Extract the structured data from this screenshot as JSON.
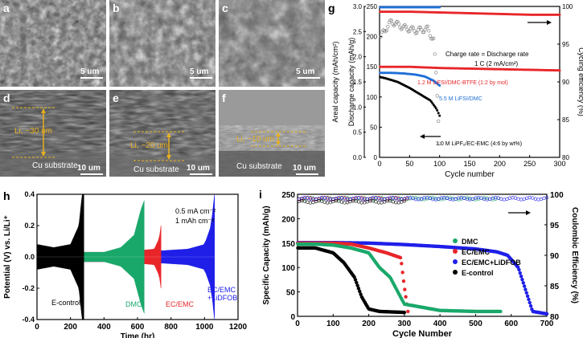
{
  "panels": {
    "a": {
      "label": "a",
      "scale": "5 um"
    },
    "b": {
      "label": "b",
      "scale": "5 um"
    },
    "c": {
      "label": "c",
      "scale": "5 um"
    },
    "d": {
      "label": "d",
      "scale": "10 um",
      "thickness": "Li, ~30 um",
      "substrate": "Cu substrate"
    },
    "e": {
      "label": "e",
      "scale": "10 um",
      "thickness": "Li, ~20 um",
      "substrate": "Cu substrate"
    },
    "f": {
      "label": "f",
      "scale": "10 um",
      "thickness": "Li, ~10 um",
      "substrate": "Cu substrate"
    }
  },
  "chart_data": [
    {
      "id": "g",
      "label": "g",
      "type": "scatter",
      "xlabel": "Cycle number",
      "ylabel_left_outer": "Areal capacity (mAh/cm²)",
      "ylabel_left_inner": "Discharge capacity (mAh/g)",
      "ylabel_right": "Cycling efficiency (%)",
      "xlim": [
        0,
        300
      ],
      "x_ticks": [
        "0",
        "50",
        "100",
        "150",
        "200",
        "250",
        "300"
      ],
      "ylim_areal": [
        0,
        3.0
      ],
      "areal_ticks": [
        "0.0",
        "0.5",
        "1.0",
        "1.5",
        "2.0",
        "2.5",
        "3.0"
      ],
      "ylim_discharge": [
        0,
        250
      ],
      "discharge_ticks": [
        "0",
        "50",
        "100",
        "150",
        "200",
        "250"
      ],
      "ylim_efficiency": [
        80,
        100
      ],
      "efficiency_ticks": [
        "80",
        "85",
        "90",
        "95",
        "100"
      ],
      "annotations": [
        "Charge rate = Discharge rate",
        "1 C (2 mA/cm²)"
      ],
      "series": [
        {
          "name": "1.2 M LiFSI/DMC-BTFE (1:2 by mol)",
          "color": "#e8262a",
          "x": [
            1,
            50,
            100,
            150,
            200,
            250,
            300
          ],
          "y": [
            150,
            150,
            148,
            147,
            146,
            145,
            144
          ]
        },
        {
          "name": "5.5 M LiFSI/DMC",
          "color": "#1f6fd6",
          "x": [
            1,
            20,
            40,
            60,
            75,
            90,
            100
          ],
          "y": [
            140,
            140,
            139,
            137,
            134,
            127,
            119
          ]
        },
        {
          "name": "1.0 M LiPF₆/EC-EMC (4:6 by wt%)",
          "color": "#000000",
          "x": [
            1,
            10,
            30,
            50,
            70,
            85,
            95,
            100
          ],
          "y": [
            133,
            131,
            125,
            115,
            103,
            94,
            80,
            69
          ]
        },
        {
          "name": "",
          "color": "#e8262a",
          "axis": "efficiency",
          "x": [
            1,
            50,
            100,
            150,
            200,
            250,
            300
          ],
          "y": [
            99.3,
            99.3,
            99.2,
            99.1,
            99.0,
            98.9,
            98.9
          ]
        },
        {
          "name": "",
          "color": "#1f6fd6",
          "axis": "efficiency",
          "x": [
            1,
            20,
            40,
            60,
            80,
            100
          ],
          "y": [
            99.9,
            99.9,
            99.9,
            99.9,
            99.9,
            99.9
          ]
        },
        {
          "name": "",
          "color": "#777777",
          "axis": "efficiency",
          "x": [
            2,
            10,
            20,
            40,
            60,
            80,
            90,
            95,
            100
          ],
          "y": [
            96.0,
            97.0,
            98.0,
            97.2,
            96.8,
            97.0,
            95.5,
            90.0,
            82.0
          ]
        }
      ]
    },
    {
      "id": "h",
      "label": "h",
      "type": "area",
      "xlabel": "Time (hr)",
      "ylabel": "Potential (V) vs. Li/Li⁺",
      "xlim": [
        0,
        1200
      ],
      "x_ticks": [
        "0",
        "200",
        "400",
        "600",
        "800",
        "1000",
        "1200"
      ],
      "ylim": [
        -0.4,
        0.4
      ],
      "y_ticks": [
        "-0.4",
        "-0.2",
        "0.0",
        "0.2",
        "0.4"
      ],
      "annotations": [
        "0.5 mA cm⁻²",
        "1 mAh cm⁻²"
      ],
      "series": [
        {
          "name": "E-control",
          "color": "#000000",
          "x": [
            0,
            100,
            200,
            250,
            270,
            280
          ],
          "y": [
            0.08,
            0.06,
            0.08,
            0.2,
            0.4,
            0.4
          ]
        },
        {
          "name": "DMC",
          "color": "#1aa86a",
          "x": [
            280,
            400,
            500,
            580,
            620,
            640
          ],
          "y": [
            0.03,
            0.03,
            0.06,
            0.14,
            0.3,
            0.36
          ]
        },
        {
          "name": "EC/EMC",
          "color": "#e8262a",
          "x": [
            280,
            500,
            700,
            730,
            740
          ],
          "y": [
            0.03,
            0.03,
            0.05,
            0.12,
            0.2
          ]
        },
        {
          "name": "EC/EMC +LiDFOB",
          "color": "#1f1fe8",
          "x": [
            280,
            600,
            900,
            1000,
            1040,
            1060
          ],
          "y": [
            0.03,
            0.03,
            0.05,
            0.08,
            0.2,
            0.4
          ]
        }
      ]
    },
    {
      "id": "i",
      "label": "i",
      "type": "scatter",
      "xlabel": "Cycle Number",
      "ylabel": "Specific Capacity (mAh/g)",
      "ylabel_right": "Coulombic Efficiency (%)",
      "xlim": [
        0,
        700
      ],
      "x_ticks": [
        "0",
        "100",
        "200",
        "300",
        "400",
        "500",
        "600",
        "700"
      ],
      "ylim": [
        0,
        250
      ],
      "y_ticks": [
        "0",
        "50",
        "100",
        "150",
        "200",
        "250"
      ],
      "ylim_right": [
        80,
        100
      ],
      "y_ticks_right": [
        "80",
        "85",
        "90",
        "95",
        "100"
      ],
      "legend_position": "right",
      "series": [
        {
          "name": "DMC",
          "color": "#1aa86a",
          "x": [
            1,
            50,
            100,
            150,
            200,
            230,
            260,
            300,
            400,
            500,
            570
          ],
          "y": [
            148,
            148,
            146,
            140,
            130,
            100,
            80,
            25,
            12,
            10,
            10
          ]
        },
        {
          "name": "EC/EMC",
          "color": "#e8262a",
          "x": [
            1,
            50,
            100,
            150,
            200,
            250,
            290,
            300,
            310
          ],
          "y": [
            150,
            150,
            150,
            148,
            140,
            130,
            120,
            60,
            10
          ]
        },
        {
          "name": "EC/EMC+LiDFOB",
          "color": "#1f1fe8",
          "x": [
            1,
            100,
            200,
            300,
            400,
            500,
            560,
            590,
            620,
            660,
            700
          ],
          "y": [
            151,
            151,
            150,
            147,
            143,
            138,
            132,
            125,
            100,
            10,
            5
          ]
        },
        {
          "name": "E-control",
          "color": "#000000",
          "x": [
            1,
            50,
            100,
            130,
            160,
            180,
            200,
            230,
            300
          ],
          "y": [
            140,
            140,
            130,
            110,
            80,
            40,
            15,
            10,
            8
          ]
        }
      ]
    }
  ]
}
